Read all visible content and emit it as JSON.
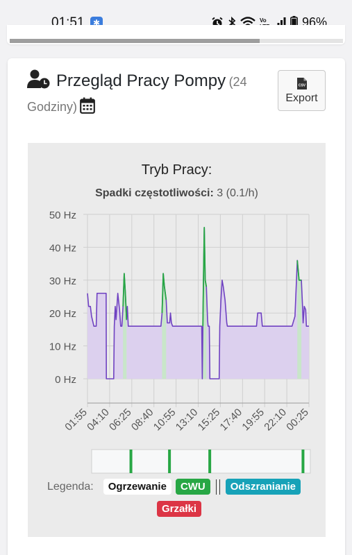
{
  "status_bar": {
    "time": "01:51",
    "battery_pct": "96%",
    "bt_icon": "bluetooth-icon",
    "alarm_icon": "alarm-icon",
    "wifi_icon": "wifi-icon",
    "volte_icon": "volte-icon",
    "signal_icon": "signal-icon",
    "battery_icon": "battery-icon"
  },
  "card": {
    "title": "Przegląd Pracy Pompy",
    "subtitle": "(24 Godziny)",
    "title_icon": "user-clock-icon",
    "calendar_icon": "calendar-icon",
    "export_label": "Export",
    "export_icon": "csv-file-icon"
  },
  "chart_header": {
    "title": "Tryb Pracy:",
    "drops_label": "Spadki częstotliwości:",
    "drops_value": "3 (0.1/h)"
  },
  "chart_data": {
    "type": "area",
    "y_unit": "Hz",
    "ylim": [
      0,
      50
    ],
    "y_ticks": [
      "0 Hz",
      "10 Hz",
      "20 Hz",
      "30 Hz",
      "40 Hz",
      "50 Hz"
    ],
    "x_ticks": [
      "01:55",
      "04:10",
      "06:25",
      "08:40",
      "10:55",
      "13:10",
      "15:25",
      "17:40",
      "19:55",
      "22:10",
      "00:25"
    ],
    "grid": true,
    "series_color": "#6f42c1",
    "fill_color": "#dcd0ee",
    "cwu_color": "#28a745",
    "cwu_fill": "#c8e6c9",
    "frequency_hz": [
      [
        0,
        26
      ],
      [
        0.1,
        22
      ],
      [
        0.25,
        22
      ],
      [
        0.35,
        19
      ],
      [
        0.55,
        16
      ],
      [
        0.75,
        16
      ],
      [
        0.82,
        26
      ],
      [
        1.6,
        26
      ],
      [
        1.62,
        0
      ],
      [
        2.25,
        0
      ],
      [
        2.3,
        16
      ],
      [
        2.38,
        22
      ],
      [
        2.45,
        18
      ],
      [
        2.6,
        26
      ],
      [
        2.75,
        21
      ],
      [
        2.85,
        16
      ],
      [
        2.95,
        16
      ],
      [
        3.05,
        22
      ],
      [
        3.15,
        32
      ],
      [
        3.25,
        26
      ],
      [
        3.35,
        18
      ],
      [
        3.42,
        22
      ],
      [
        3.5,
        16
      ],
      [
        3.8,
        16
      ],
      [
        4.4,
        16
      ],
      [
        5.3,
        16
      ],
      [
        6.0,
        16
      ],
      [
        6.3,
        16
      ],
      [
        6.4,
        20
      ],
      [
        6.5,
        32
      ],
      [
        6.6,
        28
      ],
      [
        6.75,
        24
      ],
      [
        6.85,
        17
      ],
      [
        7.05,
        17
      ],
      [
        7.12,
        20
      ],
      [
        7.2,
        17
      ],
      [
        7.3,
        16
      ],
      [
        9.8,
        16
      ],
      [
        9.85,
        0
      ],
      [
        9.9,
        16
      ],
      [
        9.95,
        30
      ],
      [
        10.02,
        46
      ],
      [
        10.1,
        30
      ],
      [
        10.2,
        28
      ],
      [
        10.3,
        18
      ],
      [
        10.35,
        16
      ],
      [
        10.45,
        16
      ],
      [
        10.5,
        0
      ],
      [
        11.3,
        0
      ],
      [
        11.35,
        16
      ],
      [
        11.45,
        24
      ],
      [
        11.55,
        30
      ],
      [
        11.65,
        28
      ],
      [
        11.8,
        24
      ],
      [
        11.95,
        17
      ],
      [
        12.0,
        16
      ],
      [
        14.5,
        16
      ],
      [
        14.6,
        20
      ],
      [
        14.9,
        20
      ],
      [
        15.0,
        16
      ],
      [
        17.55,
        16
      ],
      [
        17.8,
        19
      ],
      [
        18.0,
        36
      ],
      [
        18.15,
        30
      ],
      [
        18.35,
        30
      ],
      [
        18.45,
        22
      ],
      [
        18.5,
        17
      ],
      [
        18.6,
        22
      ],
      [
        18.72,
        21
      ],
      [
        18.78,
        16
      ],
      [
        19.0,
        16
      ]
    ],
    "cwu_intervals": [
      [
        3.05,
        3.35
      ],
      [
        6.4,
        6.75
      ],
      [
        9.9,
        10.2
      ],
      [
        18.0,
        18.4
      ]
    ]
  },
  "legend": {
    "label": "Legenda:",
    "items": [
      "Ogrzewanie",
      "CWU",
      "Odszranianie",
      "Grzałki"
    ]
  }
}
